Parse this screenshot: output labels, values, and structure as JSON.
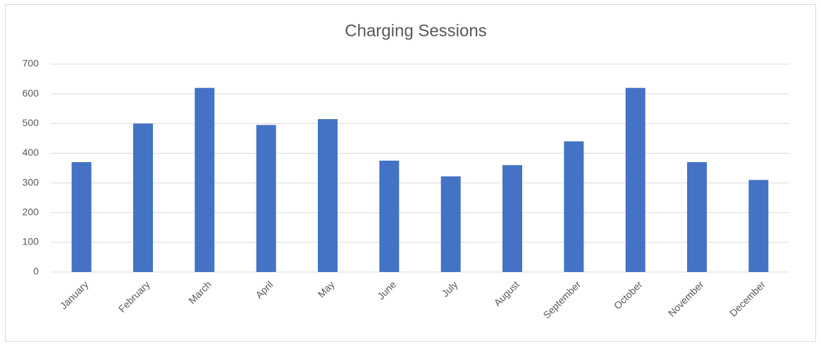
{
  "chart_data": {
    "type": "bar",
    "title": "Charging Sessions",
    "categories": [
      "January",
      "February",
      "March",
      "April",
      "May",
      "June",
      "July",
      "August",
      "September",
      "October",
      "November",
      "December"
    ],
    "values": [
      370,
      500,
      620,
      495,
      515,
      375,
      322,
      360,
      440,
      620,
      370,
      310
    ],
    "color": "#4472c4",
    "ylim": [
      0,
      700
    ],
    "yticks": [
      0,
      100,
      200,
      300,
      400,
      500,
      600,
      700
    ],
    "grid": true
  }
}
